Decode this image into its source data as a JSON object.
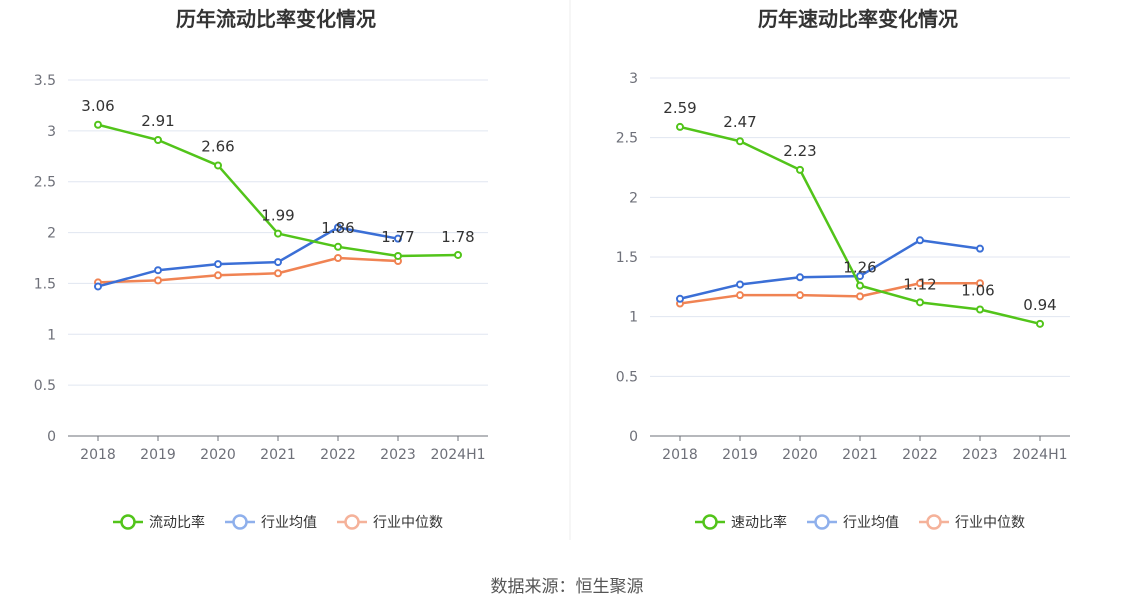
{
  "charts": [
    {
      "title": "历年流动比率变化情况",
      "categories": [
        "2018",
        "2019",
        "2020",
        "2021",
        "2022",
        "2023",
        "2024H1"
      ],
      "ylim": [
        0,
        3.5
      ],
      "yticks": [
        0,
        0.5,
        1,
        1.5,
        2,
        2.5,
        3,
        3.5
      ],
      "ytick_labels": [
        "0",
        "0.5",
        "1",
        "1.5",
        "2",
        "2.5",
        "3",
        "3.5"
      ],
      "series": [
        {
          "name": "流动比率",
          "color": "#52c41a",
          "values": [
            3.06,
            2.91,
            2.66,
            1.99,
            1.86,
            1.77,
            1.78
          ],
          "labels": [
            "3.06",
            "2.91",
            "2.66",
            "1.99",
            "1.86",
            "1.77",
            "1.78"
          ]
        },
        {
          "name": "行业均值",
          "color": "#3b6fd6",
          "values": [
            1.47,
            1.63,
            1.69,
            1.71,
            2.05,
            1.94,
            null
          ]
        },
        {
          "name": "行业中位数",
          "color": "#f08353",
          "values": [
            1.51,
            1.53,
            1.58,
            1.6,
            1.75,
            1.72,
            null
          ]
        }
      ]
    },
    {
      "title": "历年速动比率变化情况",
      "categories": [
        "2018",
        "2019",
        "2020",
        "2021",
        "2022",
        "2023",
        "2024H1"
      ],
      "ylim": [
        0,
        3
      ],
      "yticks": [
        0,
        0.5,
        1,
        1.5,
        2,
        2.5,
        3
      ],
      "ytick_labels": [
        "0",
        "0.5",
        "1",
        "1.5",
        "2",
        "2.5",
        "3"
      ],
      "series": [
        {
          "name": "速动比率",
          "color": "#52c41a",
          "values": [
            2.59,
            2.47,
            2.23,
            1.26,
            1.12,
            1.06,
            0.94
          ],
          "labels": [
            "2.59",
            "2.47",
            "2.23",
            "1.26",
            "1.12",
            "1.06",
            "0.94"
          ]
        },
        {
          "name": "行业均值",
          "color": "#3b6fd6",
          "values": [
            1.15,
            1.27,
            1.33,
            1.34,
            1.64,
            1.57,
            null
          ]
        },
        {
          "name": "行业中位数",
          "color": "#f08353",
          "values": [
            1.11,
            1.18,
            1.18,
            1.17,
            1.28,
            1.28,
            null
          ]
        }
      ]
    }
  ],
  "chart_data": [
    {
      "type": "line",
      "title": "历年流动比率变化情况",
      "x": [
        "2018",
        "2019",
        "2020",
        "2021",
        "2022",
        "2023",
        "2024H1"
      ],
      "ylim": [
        0,
        3.5
      ],
      "grid": true,
      "legend": "bottom",
      "series": [
        {
          "name": "流动比率",
          "values": [
            3.06,
            2.91,
            2.66,
            1.99,
            1.86,
            1.77,
            1.78
          ]
        },
        {
          "name": "行业均值",
          "values": [
            1.47,
            1.63,
            1.69,
            1.71,
            2.05,
            1.94,
            null
          ]
        },
        {
          "name": "行业中位数",
          "values": [
            1.51,
            1.53,
            1.58,
            1.6,
            1.75,
            1.72,
            null
          ]
        }
      ]
    },
    {
      "type": "line",
      "title": "历年速动比率变化情况",
      "x": [
        "2018",
        "2019",
        "2020",
        "2021",
        "2022",
        "2023",
        "2024H1"
      ],
      "ylim": [
        0,
        3
      ],
      "grid": true,
      "legend": "bottom",
      "series": [
        {
          "name": "速动比率",
          "values": [
            2.59,
            2.47,
            2.23,
            1.26,
            1.12,
            1.06,
            0.94
          ]
        },
        {
          "name": "行业均值",
          "values": [
            1.15,
            1.27,
            1.33,
            1.34,
            1.64,
            1.57,
            null
          ]
        },
        {
          "name": "行业中位数",
          "values": [
            1.11,
            1.18,
            1.18,
            1.17,
            1.28,
            1.28,
            null
          ]
        }
      ]
    }
  ],
  "source": "数据来源：恒生聚源"
}
